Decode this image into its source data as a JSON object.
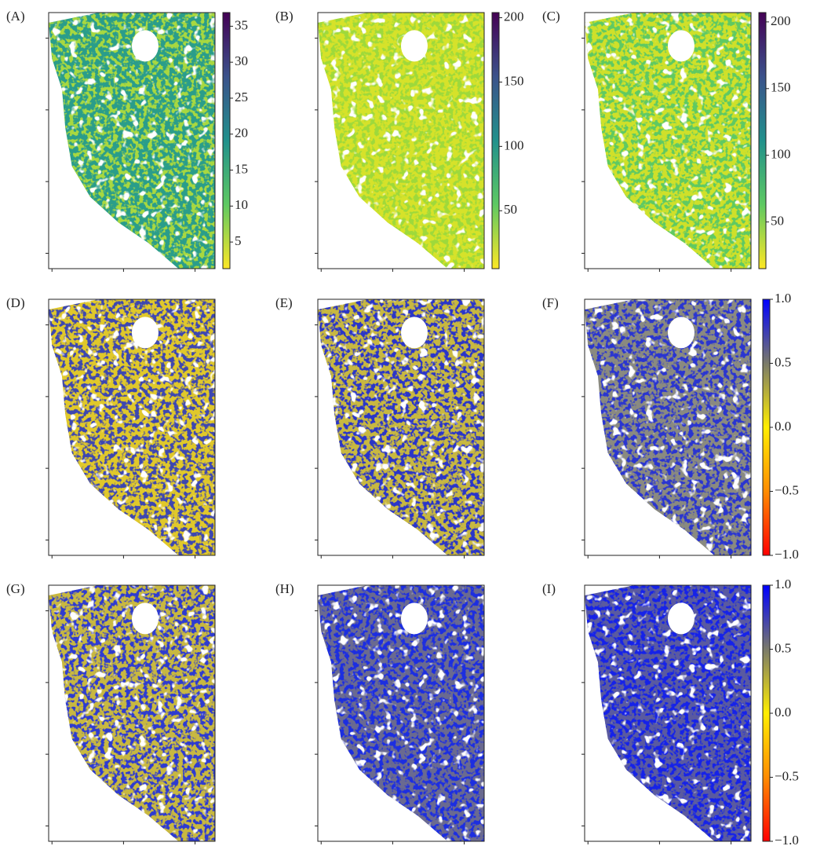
{
  "panels": [
    {
      "label": "(A)",
      "colorbar": {
        "lim": [
          1.3,
          36.9
        ],
        "ticks": [
          5,
          10,
          15,
          20,
          25,
          30,
          35
        ]
      }
    },
    {
      "label": "(B)",
      "colorbar": {
        "lim": [
          5,
          204
        ],
        "ticks": [
          50,
          100,
          150,
          200
        ]
      }
    },
    {
      "label": "(C)",
      "colorbar": {
        "lim": [
          15,
          207
        ],
        "ticks": [
          50,
          100,
          150,
          200
        ]
      }
    },
    {
      "label": "(D)"
    },
    {
      "label": "(E)"
    },
    {
      "label": "(F)",
      "colorbar": {
        "lim": [
          -1,
          1
        ],
        "ticks": [
          {
            "value": -1,
            "label": "−1.0"
          },
          {
            "value": -0.5,
            "label": "−0.5"
          },
          {
            "value": 0,
            "label": "0.0"
          },
          {
            "value": 0.5,
            "label": "0.5"
          },
          {
            "value": 1,
            "label": "1.0"
          }
        ]
      }
    },
    {
      "label": "(G)"
    },
    {
      "label": "(H)"
    },
    {
      "label": "(I)",
      "colorbar": {
        "lim": [
          -1,
          1
        ],
        "ticks": [
          {
            "value": -1,
            "label": "−1.0"
          },
          {
            "value": -0.5,
            "label": "−0.5"
          },
          {
            "value": 0,
            "label": "0.0"
          },
          {
            "value": 0.5,
            "label": "0.5"
          },
          {
            "value": 1,
            "label": "1.0"
          }
        ]
      }
    }
  ]
}
